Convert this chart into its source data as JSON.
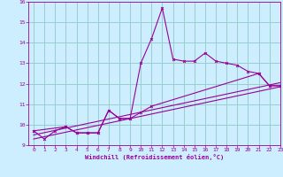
{
  "xlabel": "Windchill (Refroidissement éolien,°C)",
  "bg_color": "#cceeff",
  "grid_color": "#99cccc",
  "line_color": "#990099",
  "xlim": [
    -0.5,
    23
  ],
  "ylim": [
    9,
    16
  ],
  "yticks": [
    9,
    10,
    11,
    12,
    13,
    14,
    15,
    16
  ],
  "xticks": [
    0,
    1,
    2,
    3,
    4,
    5,
    6,
    7,
    8,
    9,
    10,
    11,
    12,
    13,
    14,
    15,
    16,
    17,
    18,
    19,
    20,
    21,
    22,
    23
  ],
  "series1_x": [
    0,
    1,
    2,
    3,
    4,
    5,
    6,
    7,
    8,
    9,
    10,
    11,
    12,
    13,
    14,
    15,
    16,
    17,
    18,
    19,
    20,
    21,
    22,
    23
  ],
  "series1_y": [
    9.7,
    9.3,
    9.7,
    9.9,
    9.6,
    9.6,
    9.6,
    10.7,
    10.3,
    10.3,
    13.0,
    14.2,
    15.7,
    13.2,
    13.1,
    13.1,
    13.5,
    13.1,
    13.0,
    12.9,
    12.6,
    12.5,
    11.9,
    11.9
  ],
  "series2_x": [
    0,
    3,
    4,
    5,
    6,
    7,
    8,
    9,
    10,
    11,
    21,
    22,
    23
  ],
  "series2_y": [
    9.7,
    9.9,
    9.6,
    9.6,
    9.6,
    10.7,
    10.3,
    10.3,
    10.6,
    10.9,
    12.5,
    11.9,
    11.9
  ],
  "regline1_x": [
    0,
    23
  ],
  "regline1_y": [
    9.5,
    12.05
  ],
  "regline2_x": [
    0,
    23
  ],
  "regline2_y": [
    9.3,
    11.85
  ]
}
